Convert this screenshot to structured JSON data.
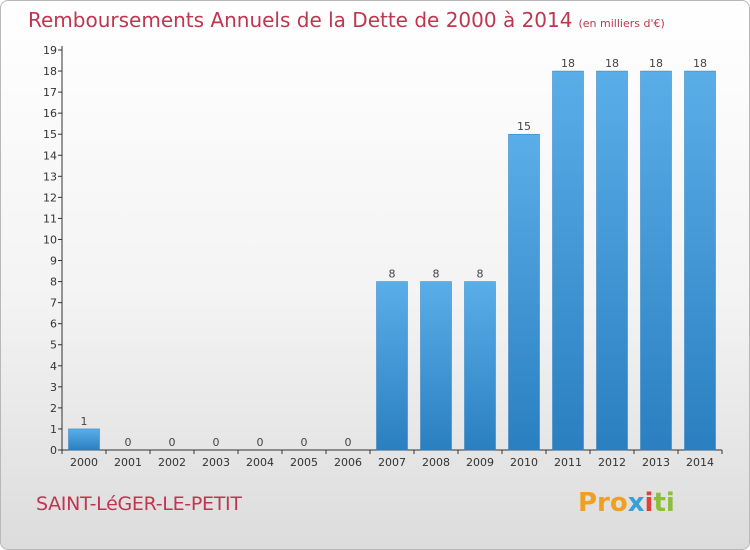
{
  "header": {
    "title": "Remboursements Annuels de la Dette de 2000 à 2014",
    "subtitle": "(en milliers d'€)"
  },
  "footer": {
    "commune": "SAINT-LéGER-LE-PETIT",
    "logo": [
      "Pro",
      "x",
      "i",
      "ti"
    ]
  },
  "colors": {
    "bar_top": "#5aaee8",
    "bar_bottom": "#2a7fc0",
    "title": "#c0354f"
  },
  "chart_data": {
    "type": "bar",
    "categories": [
      "2000",
      "2001",
      "2002",
      "2003",
      "2004",
      "2005",
      "2006",
      "2007",
      "2008",
      "2009",
      "2010",
      "2011",
      "2012",
      "2013",
      "2014"
    ],
    "values": [
      1,
      0,
      0,
      0,
      0,
      0,
      0,
      8,
      8,
      8,
      15,
      18,
      18,
      18,
      18
    ],
    "value_labels": [
      "1",
      "0",
      "0",
      "0",
      "0",
      "0",
      "0",
      "8",
      "8",
      "8",
      "15",
      "18",
      "18",
      "18",
      "18"
    ],
    "y_ticks": [
      "0",
      "1",
      "2",
      "3",
      "4",
      "5",
      "6",
      "7",
      "8",
      "9",
      "10",
      "11",
      "12",
      "13",
      "14",
      "15",
      "16",
      "17",
      "18",
      "19"
    ],
    "ylim": [
      0,
      19
    ],
    "grid": false,
    "legend": "none"
  }
}
